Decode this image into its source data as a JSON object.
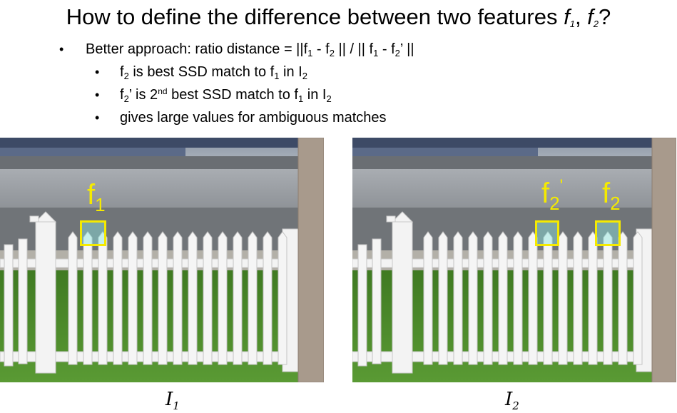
{
  "title": {
    "prefix": "How to define the difference between two features ",
    "f1": "f",
    "f1_sub": "1",
    "sep": ", ",
    "f2": "f",
    "f2_sub": "2",
    "suffix": "?"
  },
  "bullets": {
    "main": {
      "lead": "Better approach:  ratio distance = ||f",
      "s1": "1",
      "mid1": " - f",
      "s2": "2",
      "mid2": " || / || f",
      "s3": "1",
      "mid3": " - f",
      "s4": "2",
      "end": "’ ||"
    },
    "sub1": {
      "a": "f",
      "s1": "2",
      "b": " is best SSD match to f",
      "s2": "1",
      "c": " in I",
      "s3": "2"
    },
    "sub2": {
      "a": "f",
      "s1": "2",
      "b": "’  is  2",
      "sup": "nd",
      "c": " best SSD match to f",
      "s2": "1",
      "d": " in I",
      "s3": "2"
    },
    "sub3": {
      "text": "gives large values for ambiguous matches"
    },
    "bullet_char": "•"
  },
  "images": {
    "left": {
      "caption": "I",
      "caption_sub": "1",
      "label": "f",
      "label_sub": "1"
    },
    "right": {
      "caption": "I",
      "caption_sub": "2",
      "label_a": "f",
      "label_a_sub": "2",
      "label_a_sup": "'",
      "label_b": "f",
      "label_b_sub": "2"
    }
  },
  "colors": {
    "label": "#f5ea00",
    "highlight": "#8ce6e1",
    "grass": "#4f8a2e",
    "fence": "#f2f2f2"
  }
}
